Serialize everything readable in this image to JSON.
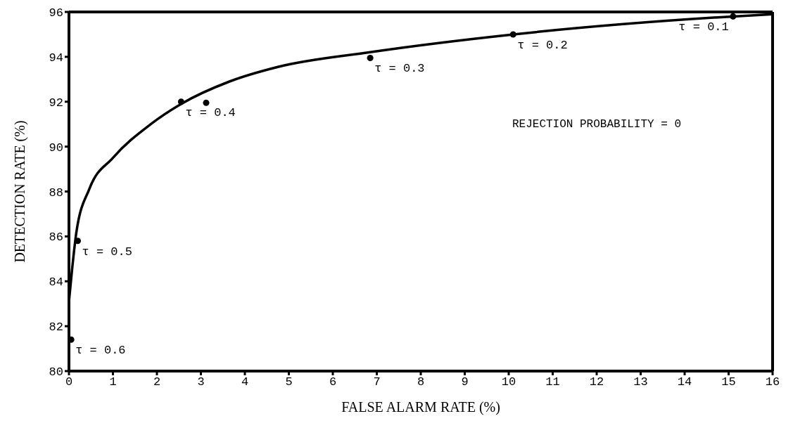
{
  "chart_data": {
    "type": "line",
    "xlabel": "FALSE ALARM RATE (%)",
    "ylabel": "DETECTION RATE (%)",
    "xlim": [
      0,
      16
    ],
    "xticks": [
      0,
      1,
      2,
      3,
      4,
      5,
      6,
      7,
      8,
      9,
      10,
      11,
      12,
      13,
      14,
      15,
      16
    ],
    "ylim": [
      80,
      96
    ],
    "yticks": [
      80,
      82,
      84,
      86,
      88,
      90,
      92,
      94,
      96
    ],
    "grid": false,
    "series": [
      {
        "color": "#000000",
        "marker": "none",
        "x": [
          0,
          0.08,
          0.17,
          0.46,
          1,
          1.86,
          2.55,
          3.65,
          4.75,
          6.82,
          10.11,
          15.1,
          16
        ],
        "values": [
          83.1,
          84.7,
          86.2,
          88.1,
          89.5,
          91.0,
          91.9,
          92.9,
          93.55,
          94.2,
          95.0,
          95.8,
          95.9
        ]
      },
      {
        "type": "scatter",
        "color": "#000000",
        "marker": "circle",
        "x": [
          0.05,
          0.2,
          2.55,
          3.12,
          6.85,
          10.1,
          15.1
        ],
        "values": [
          81.4,
          85.8,
          92.0,
          91.95,
          93.95,
          95.0,
          95.8
        ]
      }
    ],
    "annotations": [
      {
        "text": "τ = 0.6",
        "x": 0.05,
        "y": 81.4
      },
      {
        "text": "τ = 0.5",
        "x": 0.2,
        "y": 85.8
      },
      {
        "text": "τ = 0.4",
        "x": 2.55,
        "y": 92.0
      },
      {
        "text": "τ = 0.3",
        "x": 6.85,
        "y": 93.95
      },
      {
        "text": "τ = 0.2",
        "x": 10.1,
        "y": 95.0
      },
      {
        "text": "τ = 0.1",
        "x": 15.1,
        "y": 95.8
      },
      "REJECTION PROBABILITY = 0"
    ]
  }
}
